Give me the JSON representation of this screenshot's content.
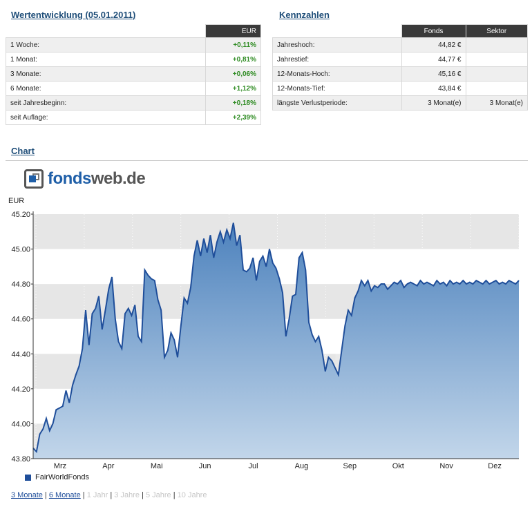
{
  "performance": {
    "title": "Wertentwicklung (05.01.2011)",
    "currency_header": "EUR",
    "rows": [
      {
        "label": "1 Woche:",
        "value": "+0,11%"
      },
      {
        "label": "1 Monat:",
        "value": "+0,81%"
      },
      {
        "label": "3 Monate:",
        "value": "+0,06%"
      },
      {
        "label": "6 Monate:",
        "value": "+1,12%"
      },
      {
        "label": "seit Jahresbeginn:",
        "value": "+0,18%"
      },
      {
        "label": "seit Auflage:",
        "value": "+2,39%"
      }
    ]
  },
  "kennzahlen": {
    "title": "Kennzahlen",
    "headers": [
      "Fonds",
      "Sektor"
    ],
    "rows": [
      {
        "label": "Jahreshoch:",
        "fonds": "44,82 €",
        "sektor": ""
      },
      {
        "label": "Jahrestief:",
        "fonds": "44,77 €",
        "sektor": ""
      },
      {
        "label": "12-Monats-Hoch:",
        "fonds": "45,16 €",
        "sektor": ""
      },
      {
        "label": "12-Monats-Tief:",
        "fonds": "43,84 €",
        "sektor": ""
      },
      {
        "label": "längste Verlustperiode:",
        "fonds": "3 Monat(e)",
        "sektor": "3 Monat(e)"
      }
    ]
  },
  "chart_section": {
    "title": "Chart",
    "logo": {
      "part1": "fonds",
      "part2": "web.de"
    },
    "unit": "EUR",
    "legend": "FairWorldFonds",
    "ranges": [
      {
        "label": "3 Monate",
        "active": true
      },
      {
        "label": "6 Monate",
        "active": true
      },
      {
        "label": "1 Jahr",
        "active": false
      },
      {
        "label": "3 Jahre",
        "active": false
      },
      {
        "label": "5 Jahre",
        "active": false
      },
      {
        "label": "10 Jahre",
        "active": false
      }
    ]
  },
  "colors": {
    "line": "#1f4e9a",
    "fill_top": "#4d82bd",
    "fill_bottom": "#c2d6ea",
    "positive": "#2e8b22",
    "header_bg": "#3a3a3a"
  },
  "chart_data": {
    "type": "area",
    "title": "",
    "ylabel": "EUR",
    "ylim": [
      43.8,
      45.2
    ],
    "yticks": [
      "45.20",
      "45.00",
      "44.80",
      "44.60",
      "44.40",
      "44.20",
      "44.00",
      "43.80"
    ],
    "month_labels": [
      "Mrz",
      "Apr",
      "Mai",
      "Jun",
      "Jul",
      "Aug",
      "Sep",
      "Okt",
      "Nov",
      "Dez"
    ],
    "series": [
      {
        "name": "FairWorldFonds",
        "x": [
          0,
          2,
          4,
          6,
          8,
          10,
          12,
          14,
          16,
          18,
          20,
          22,
          24,
          26,
          28,
          30,
          32,
          34,
          36,
          38,
          40,
          42,
          44,
          46,
          48,
          50,
          52,
          54,
          56,
          58,
          60,
          62,
          64,
          66,
          68,
          70,
          72,
          74,
          76,
          78,
          80,
          82,
          84,
          86,
          88,
          90,
          92,
          94,
          96,
          98,
          100,
          102,
          104,
          106,
          108,
          110,
          112,
          114,
          116,
          118,
          120,
          122,
          124,
          126,
          128,
          130,
          132,
          134,
          136,
          138,
          140,
          142,
          144,
          146,
          148,
          150,
          152,
          154,
          156,
          158,
          160,
          162,
          164,
          166,
          168,
          170,
          172,
          174,
          176,
          178,
          180,
          182,
          184,
          186,
          188,
          190,
          192,
          194,
          196,
          198,
          200,
          202,
          204,
          206,
          208,
          210,
          212,
          214,
          216,
          218,
          220,
          222,
          224,
          226,
          228,
          230,
          232,
          234,
          236,
          238,
          240,
          242,
          244,
          246,
          248,
          250,
          252,
          254,
          256,
          258,
          260,
          262,
          264,
          266,
          268,
          270,
          272,
          274,
          276,
          278,
          280,
          282,
          284,
          286,
          288,
          290,
          292,
          294,
          296
        ],
        "y": [
          43.86,
          43.84,
          43.94,
          43.97,
          44.03,
          43.96,
          44.0,
          44.08,
          44.09,
          44.1,
          44.19,
          44.12,
          44.22,
          44.28,
          44.33,
          44.43,
          44.65,
          44.45,
          44.63,
          44.66,
          44.73,
          44.54,
          44.65,
          44.77,
          44.84,
          44.6,
          44.47,
          44.43,
          44.63,
          44.66,
          44.62,
          44.68,
          44.5,
          44.47,
          44.88,
          44.85,
          44.83,
          44.82,
          44.71,
          44.65,
          44.38,
          44.42,
          44.52,
          44.48,
          44.38,
          44.56,
          44.72,
          44.69,
          44.78,
          44.96,
          45.05,
          44.96,
          45.06,
          44.98,
          45.08,
          44.95,
          45.04,
          45.1,
          45.04,
          45.11,
          45.06,
          45.15,
          45.02,
          45.08,
          44.88,
          44.87,
          44.89,
          44.95,
          44.82,
          44.93,
          44.96,
          44.9,
          45.0,
          44.92,
          44.89,
          44.83,
          44.75,
          44.5,
          44.6,
          44.73,
          44.74,
          44.95,
          44.98,
          44.88,
          44.58,
          44.51,
          44.47,
          44.5,
          44.42,
          44.3,
          44.38,
          44.36,
          44.32,
          44.28,
          44.42,
          44.56,
          44.65,
          44.62,
          44.72,
          44.76,
          44.82,
          44.79,
          44.82,
          44.76,
          44.79,
          44.78,
          44.8,
          44.8,
          44.77,
          44.79,
          44.81,
          44.8,
          44.82,
          44.78,
          44.8,
          44.81,
          44.8,
          44.79,
          44.82,
          44.8,
          44.81,
          44.8,
          44.79,
          44.82,
          44.8,
          44.81,
          44.79,
          44.82,
          44.8,
          44.81,
          44.8,
          44.82,
          44.8,
          44.81,
          44.8,
          44.82,
          44.81,
          44.8,
          44.82,
          44.8,
          44.81,
          44.82,
          44.8,
          44.81,
          44.8,
          44.82,
          44.81,
          44.8,
          44.82
        ]
      }
    ],
    "grid": true,
    "legend_position": "bottom-left"
  }
}
